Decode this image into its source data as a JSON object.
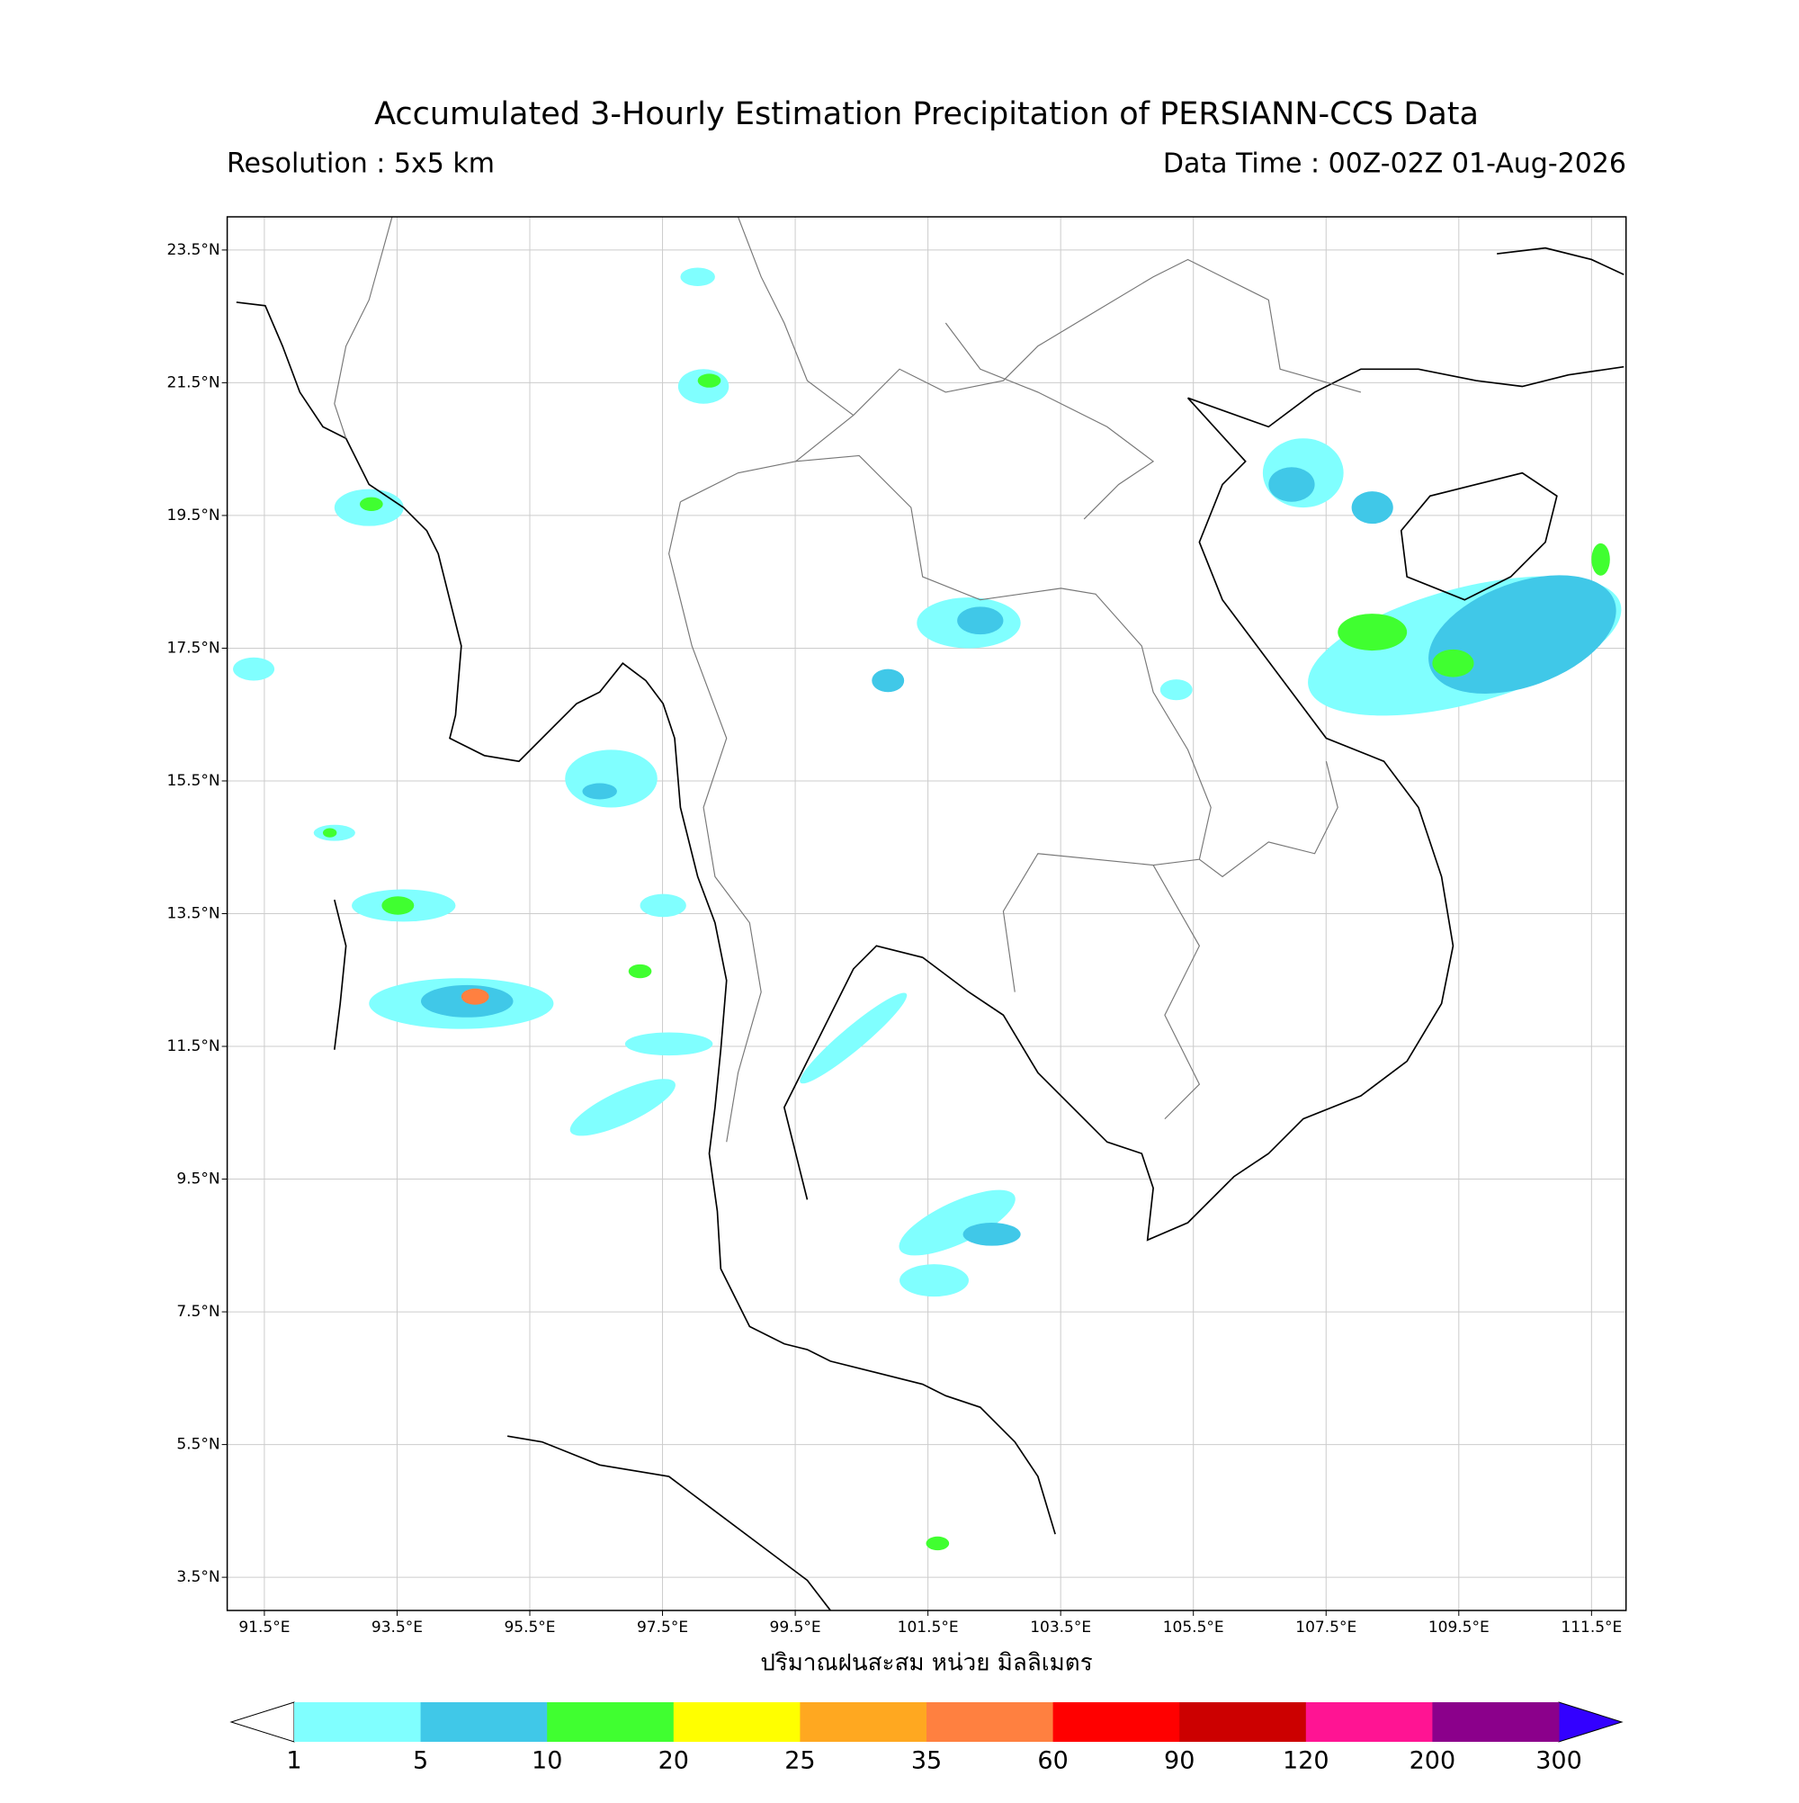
{
  "header": {
    "title": "Accumulated 3-Hourly Estimation Precipitation of PERSIANN-CCS Data",
    "resolution": "Resolution : 5x5 km",
    "data_time": "Data Time : 00Z-02Z 01-Aug-2026"
  },
  "map": {
    "lonlim": [
      90.94,
      112.02
    ],
    "latlim": [
      3.0,
      24.0
    ],
    "grid": true,
    "lat_ticks": [
      {
        "value": 3.5,
        "label": "3.5°N"
      },
      {
        "value": 5.5,
        "label": "5.5°N"
      },
      {
        "value": 7.5,
        "label": "7.5°N"
      },
      {
        "value": 9.5,
        "label": "9.5°N"
      },
      {
        "value": 11.5,
        "label": "11.5°N"
      },
      {
        "value": 13.5,
        "label": "13.5°N"
      },
      {
        "value": 15.5,
        "label": "15.5°N"
      },
      {
        "value": 17.5,
        "label": "17.5°N"
      },
      {
        "value": 19.5,
        "label": "19.5°N"
      },
      {
        "value": 21.5,
        "label": "21.5°N"
      },
      {
        "value": 23.5,
        "label": "23.5°N"
      }
    ],
    "lon_ticks": [
      {
        "value": 91.5,
        "label": "91.5°E"
      },
      {
        "value": 93.5,
        "label": "93.5°E"
      },
      {
        "value": 95.5,
        "label": "95.5°E"
      },
      {
        "value": 97.5,
        "label": "97.5°E"
      },
      {
        "value": 99.5,
        "label": "99.5°E"
      },
      {
        "value": 101.5,
        "label": "101.5°E"
      },
      {
        "value": 103.5,
        "label": "103.5°E"
      },
      {
        "value": 105.5,
        "label": "105.5°E"
      },
      {
        "value": 107.5,
        "label": "107.5°E"
      },
      {
        "value": 109.5,
        "label": "109.5°E"
      },
      {
        "value": 111.5,
        "label": "111.5°E"
      }
    ],
    "x_label": "ปริมาณฝนสะสม หน่วย มิลลิเมตร"
  },
  "colorbar": {
    "levels": [
      1,
      5,
      10,
      20,
      25,
      35,
      60,
      90,
      120,
      200,
      300
    ],
    "colors": [
      "#80ffff",
      "#40c8e8",
      "#40ff30",
      "#ffff00",
      "#ffa820",
      "#ff8040",
      "#ff0000",
      "#cc0000",
      "#ff1493",
      "#8b008b"
    ],
    "under_color": "#ffffff",
    "over_color": "#3300ff"
  }
}
